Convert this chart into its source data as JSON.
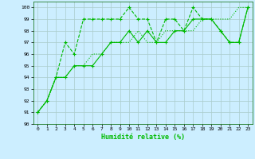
{
  "xlabel": "Humidité relative (%)",
  "bg_color": "#cceeff",
  "grid_color": "#aacccc",
  "line_color": "#00bb00",
  "xlim": [
    -0.5,
    23.5
  ],
  "ylim": [
    90,
    100.5
  ],
  "yticks": [
    90,
    91,
    92,
    93,
    94,
    95,
    96,
    97,
    98,
    99,
    100
  ],
  "xticks": [
    0,
    1,
    2,
    3,
    4,
    5,
    6,
    7,
    8,
    9,
    10,
    11,
    12,
    13,
    14,
    15,
    16,
    17,
    18,
    19,
    20,
    21,
    22,
    23
  ],
  "series1_x": [
    0,
    1,
    2,
    3,
    4,
    5,
    6,
    7,
    8,
    9,
    10,
    11,
    12,
    13,
    14,
    15,
    16,
    17,
    18,
    19,
    20,
    21,
    22,
    23
  ],
  "series1_y": [
    91,
    92,
    94,
    97,
    96,
    99,
    99,
    99,
    99,
    99,
    100,
    99,
    99,
    97,
    99,
    99,
    98,
    100,
    99,
    99,
    98,
    97,
    97,
    100
  ],
  "series2_x": [
    0,
    1,
    2,
    3,
    4,
    5,
    6,
    7,
    8,
    9,
    10,
    11,
    12,
    13,
    14,
    15,
    16,
    17,
    18,
    19,
    20,
    21,
    22,
    23
  ],
  "series2_y": [
    91,
    92,
    94,
    94,
    95,
    95,
    95,
    96,
    97,
    97,
    98,
    97,
    98,
    97,
    97,
    98,
    98,
    99,
    99,
    99,
    98,
    97,
    97,
    100
  ],
  "series3_x": [
    0,
    1,
    2,
    3,
    4,
    5,
    6,
    7,
    8,
    9,
    10,
    11,
    12,
    13,
    14,
    15,
    16,
    17,
    18,
    19,
    20,
    21,
    22,
    23
  ],
  "series3_y": [
    91,
    92,
    94,
    94,
    95,
    95,
    96,
    96,
    97,
    97,
    97,
    98,
    97,
    97,
    98,
    98,
    98,
    98,
    99,
    99,
    99,
    99,
    100,
    100
  ]
}
